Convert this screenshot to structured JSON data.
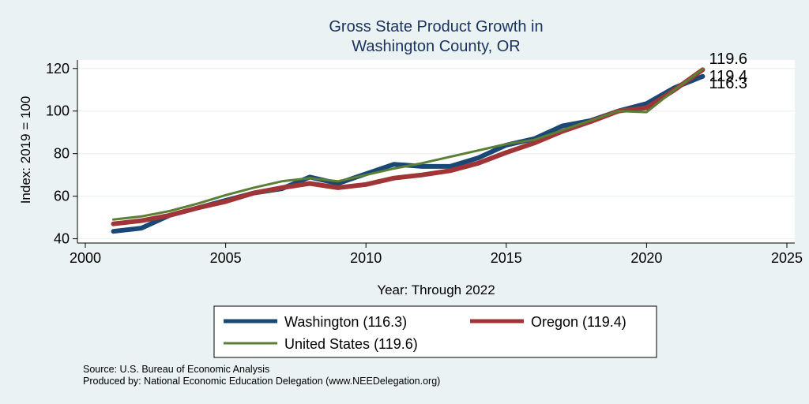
{
  "chart_data": {
    "type": "line",
    "title": [
      "Gross State Product Growth in",
      "Washington County, OR"
    ],
    "xlabel": "Year: Through 2022",
    "ylabel": "Index: 2019 = 100",
    "xlim": [
      2000,
      2025
    ],
    "ylim": [
      38,
      124
    ],
    "xticks": [
      2000,
      2005,
      2010,
      2015,
      2020,
      2025
    ],
    "yticks": [
      40,
      60,
      80,
      100,
      120
    ],
    "grid": "horizontal",
    "x": [
      2001,
      2002,
      2003,
      2004,
      2005,
      2006,
      2007,
      2008,
      2009,
      2010,
      2011,
      2012,
      2013,
      2014,
      2015,
      2016,
      2017,
      2018,
      2019,
      2020,
      2021,
      2022
    ],
    "series": [
      {
        "name": "Washington",
        "legend_label": "Washington  (116.3)",
        "end_label": "116.3",
        "color": "#1a4876",
        "values": [
          43.5,
          45,
          51,
          54.5,
          58,
          61.5,
          63.5,
          69,
          66,
          70.5,
          75,
          74,
          74,
          78,
          84,
          87,
          93,
          95.5,
          100,
          103.5,
          111,
          116.3
        ]
      },
      {
        "name": "Oregon",
        "legend_label": "Oregon (119.4)",
        "end_label": "119.4",
        "color": "#a03537",
        "values": [
          47,
          48.5,
          51,
          54.5,
          57.5,
          61.5,
          64,
          66,
          64,
          65.5,
          68.5,
          70,
          72,
          75.5,
          80.5,
          85,
          90.5,
          95,
          100,
          101.5,
          110,
          119.4
        ]
      },
      {
        "name": "United States",
        "legend_label": "United States (119.6)",
        "end_label": "119.6",
        "color": "#5b7f35",
        "values": [
          49,
          50.5,
          53,
          56.5,
          60.5,
          64,
          67,
          68.5,
          67,
          70,
          73,
          75.5,
          78.5,
          81.5,
          84.5,
          86.5,
          91,
          95.5,
          100,
          99.5,
          110,
          119.6
        ]
      }
    ],
    "legend_position": "bottom",
    "notes": [
      "Source: U.S. Bureau of Economic Analysis",
      "Produced by: National Economic Education Delegation (www.NEEDelegation.org)"
    ]
  }
}
